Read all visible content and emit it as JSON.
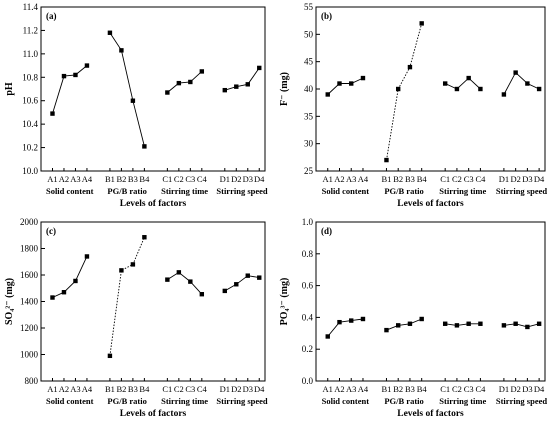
{
  "chart_data": [
    {
      "type": "line",
      "panel_label": "(a)",
      "ylabel": "pH",
      "xlabel": "Levels of factors",
      "ylim": [
        10.0,
        11.4
      ],
      "yticks": [
        "10.0",
        "10.2",
        "10.4",
        "10.6",
        "10.8",
        "11.0",
        "11.2",
        "11.4"
      ],
      "line_style": [
        "solid",
        "solid",
        "solid",
        "solid"
      ],
      "groups": [
        {
          "name": "Solid content",
          "categories": [
            "A1",
            "A2",
            "A3",
            "A4"
          ],
          "values": [
            10.49,
            10.81,
            10.82,
            10.9
          ]
        },
        {
          "name": "PG/B ratio",
          "categories": [
            "B1",
            "B2",
            "B3",
            "B4"
          ],
          "values": [
            11.18,
            11.03,
            10.6,
            10.21
          ]
        },
        {
          "name": "Stirring time",
          "categories": [
            "C1",
            "C2",
            "C3",
            "C4"
          ],
          "values": [
            10.67,
            10.75,
            10.76,
            10.85
          ]
        },
        {
          "name": "Stirring speed",
          "categories": [
            "D1",
            "D2",
            "D3",
            "D4"
          ],
          "values": [
            10.69,
            10.72,
            10.74,
            10.88
          ]
        }
      ]
    },
    {
      "type": "line",
      "panel_label": "(b)",
      "ylabel": "F⁻ (mg)",
      "xlabel": "Levels of factors",
      "ylim": [
        25,
        55
      ],
      "yticks": [
        "25",
        "30",
        "35",
        "40",
        "45",
        "50",
        "55"
      ],
      "line_style": [
        "solid",
        "dotted",
        "solid",
        "solid"
      ],
      "groups": [
        {
          "name": "Solid content",
          "categories": [
            "A1",
            "A2",
            "A3",
            "A4"
          ],
          "values": [
            39,
            41,
            41,
            42
          ]
        },
        {
          "name": "PG/B ratio",
          "categories": [
            "B1",
            "B2",
            "B3",
            "B4"
          ],
          "values": [
            27,
            40,
            44,
            52
          ]
        },
        {
          "name": "Stirring time",
          "categories": [
            "C1",
            "C2",
            "C3",
            "C4"
          ],
          "values": [
            41,
            40,
            42,
            40
          ]
        },
        {
          "name": "Stirring speed",
          "categories": [
            "D1",
            "D2",
            "D3",
            "D4"
          ],
          "values": [
            39,
            43,
            41,
            40
          ]
        }
      ]
    },
    {
      "type": "line",
      "panel_label": "(c)",
      "ylabel": "SO₄²⁻ (mg)",
      "xlabel": "Levels of factors",
      "ylim": [
        800,
        2000
      ],
      "yticks": [
        "800",
        "1000",
        "1200",
        "1400",
        "1600",
        "1800",
        "2000"
      ],
      "line_style": [
        "solid",
        "dotted",
        "solid",
        "solid"
      ],
      "groups": [
        {
          "name": "Solid content",
          "categories": [
            "A1",
            "A2",
            "A3",
            "A4"
          ],
          "values": [
            1430,
            1470,
            1555,
            1740
          ]
        },
        {
          "name": "PG/B ratio",
          "categories": [
            "B1",
            "B2",
            "B3",
            "B4"
          ],
          "values": [
            990,
            1635,
            1680,
            1885
          ]
        },
        {
          "name": "Stirring time",
          "categories": [
            "C1",
            "C2",
            "C3",
            "C4"
          ],
          "values": [
            1565,
            1620,
            1550,
            1455
          ]
        },
        {
          "name": "Stirring speed",
          "categories": [
            "D1",
            "D2",
            "D3",
            "D4"
          ],
          "values": [
            1480,
            1530,
            1595,
            1580
          ]
        }
      ]
    },
    {
      "type": "line",
      "panel_label": "(d)",
      "ylabel": "PO₄³⁻ (mg)",
      "xlabel": "Levels of factors",
      "ylim": [
        0.0,
        1.0
      ],
      "yticks": [
        "0.0",
        "0.2",
        "0.4",
        "0.6",
        "0.8",
        "1.0"
      ],
      "line_style": [
        "solid",
        "solid",
        "solid",
        "solid"
      ],
      "groups": [
        {
          "name": "Solid content",
          "categories": [
            "A1",
            "A2",
            "A3",
            "A4"
          ],
          "values": [
            0.28,
            0.37,
            0.38,
            0.39
          ]
        },
        {
          "name": "PG/B ratio",
          "categories": [
            "B1",
            "B2",
            "B3",
            "B4"
          ],
          "values": [
            0.32,
            0.35,
            0.36,
            0.39
          ]
        },
        {
          "name": "Stirring time",
          "categories": [
            "C1",
            "C2",
            "C3",
            "C4"
          ],
          "values": [
            0.36,
            0.35,
            0.36,
            0.36
          ]
        },
        {
          "name": "Stirring speed",
          "categories": [
            "D1",
            "D2",
            "D3",
            "D4"
          ],
          "values": [
            0.35,
            0.36,
            0.34,
            0.36
          ]
        }
      ]
    }
  ]
}
